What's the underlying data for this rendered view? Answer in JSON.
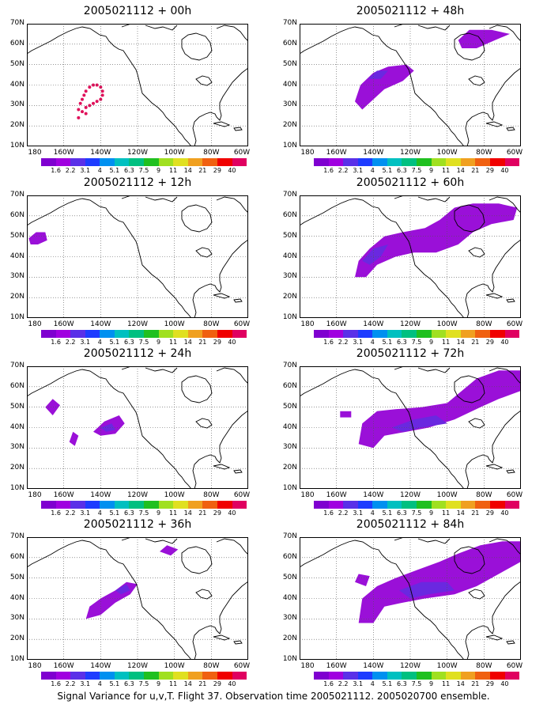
{
  "panels": [
    {
      "title": "2005021112 + 00h"
    },
    {
      "title": "2005021112 + 48h"
    },
    {
      "title": "2005021112 + 12h"
    },
    {
      "title": "2005021112 + 60h"
    },
    {
      "title": "2005021112 + 24h"
    },
    {
      "title": "2005021112 + 72h"
    },
    {
      "title": "2005021112 + 36h"
    },
    {
      "title": "2005021112 + 84h"
    }
  ],
  "lat_labels": [
    "70N",
    "60N",
    "50N",
    "40N",
    "30N",
    "20N",
    "10N"
  ],
  "lon_labels": [
    "180",
    "160W",
    "140W",
    "120W",
    "100W",
    "80W",
    "60W"
  ],
  "colorbar": {
    "labels": [
      "1.6",
      "2.2",
      "3.1",
      "4",
      "5.1",
      "6.3",
      "7.5",
      "9",
      "11",
      "14",
      "21",
      "29",
      "40"
    ],
    "colors": [
      "#7f00d0",
      "#a000e0",
      "#5a30e8",
      "#1e3cff",
      "#0090f0",
      "#00c0c0",
      "#00c080",
      "#20c020",
      "#a0e020",
      "#e0e020",
      "#f0a020",
      "#f06010",
      "#f00000",
      "#e00060"
    ]
  },
  "caption": "Signal Variance for u,v,T. Flight 37. Observation time 2005021112. 2005020700 ensemble."
}
